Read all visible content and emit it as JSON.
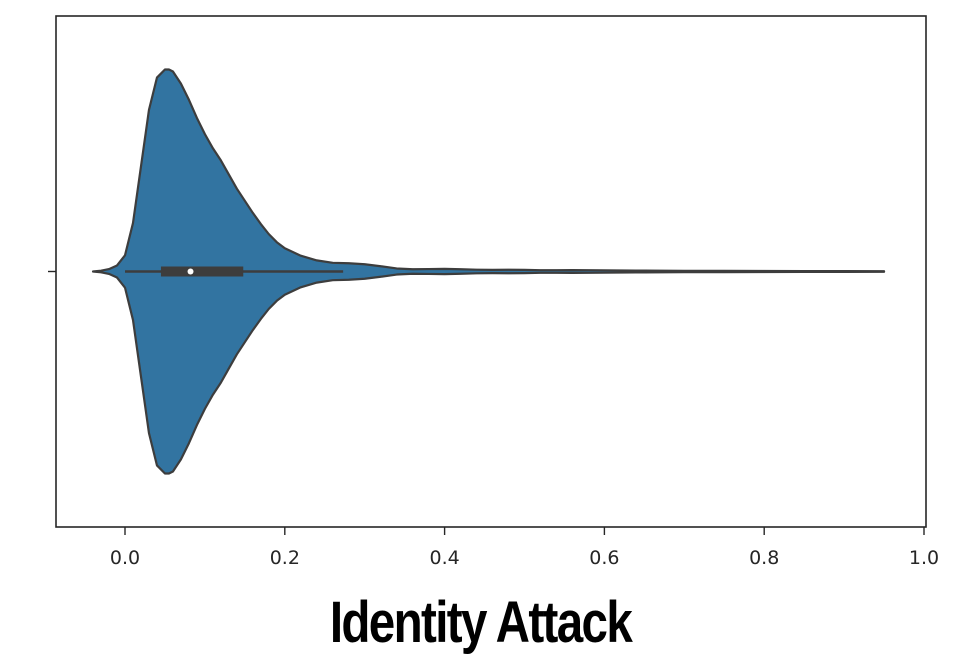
{
  "chart_data": {
    "type": "violin",
    "title": "",
    "caption": "Identity Attack",
    "xlabel": "",
    "ylabel": "",
    "xlim": [
      -0.09,
      1.0
    ],
    "xticks": [
      0.0,
      0.2,
      0.4,
      0.6,
      0.8,
      1.0
    ],
    "xtick_labels": [
      "0.0",
      "0.2",
      "0.4",
      "0.6",
      "0.8",
      "1.0"
    ],
    "grid": false,
    "color": "#3274a1",
    "edge_color": "#3d3d3d",
    "density": {
      "x": [
        -0.04,
        -0.03,
        -0.02,
        -0.01,
        0.0,
        0.01,
        0.02,
        0.03,
        0.04,
        0.05,
        0.055,
        0.06,
        0.07,
        0.08,
        0.09,
        0.1,
        0.11,
        0.12,
        0.13,
        0.14,
        0.15,
        0.16,
        0.17,
        0.18,
        0.19,
        0.2,
        0.22,
        0.24,
        0.26,
        0.28,
        0.3,
        0.32,
        0.34,
        0.36,
        0.38,
        0.4,
        0.42,
        0.44,
        0.46,
        0.48,
        0.5,
        0.52,
        0.54,
        0.56,
        0.58,
        0.6,
        0.62,
        0.65,
        0.7,
        0.75,
        0.8,
        0.85,
        0.9,
        0.95
      ],
      "width": [
        0.0,
        0.004,
        0.012,
        0.03,
        0.08,
        0.24,
        0.52,
        0.8,
        0.96,
        1.0,
        1.0,
        0.99,
        0.93,
        0.85,
        0.76,
        0.68,
        0.61,
        0.55,
        0.48,
        0.41,
        0.35,
        0.29,
        0.235,
        0.185,
        0.145,
        0.115,
        0.078,
        0.055,
        0.043,
        0.041,
        0.036,
        0.026,
        0.015,
        0.011,
        0.012,
        0.013,
        0.011,
        0.009,
        0.008,
        0.0085,
        0.008,
        0.0065,
        0.0065,
        0.007,
        0.0065,
        0.006,
        0.005,
        0.0045,
        0.0035,
        0.003,
        0.0025,
        0.0022,
        0.002,
        0.0015
      ]
    },
    "box": {
      "q1": 0.045,
      "median": 0.082,
      "q3": 0.148,
      "whisker_low": 0.0,
      "whisker_high": 0.273
    }
  }
}
